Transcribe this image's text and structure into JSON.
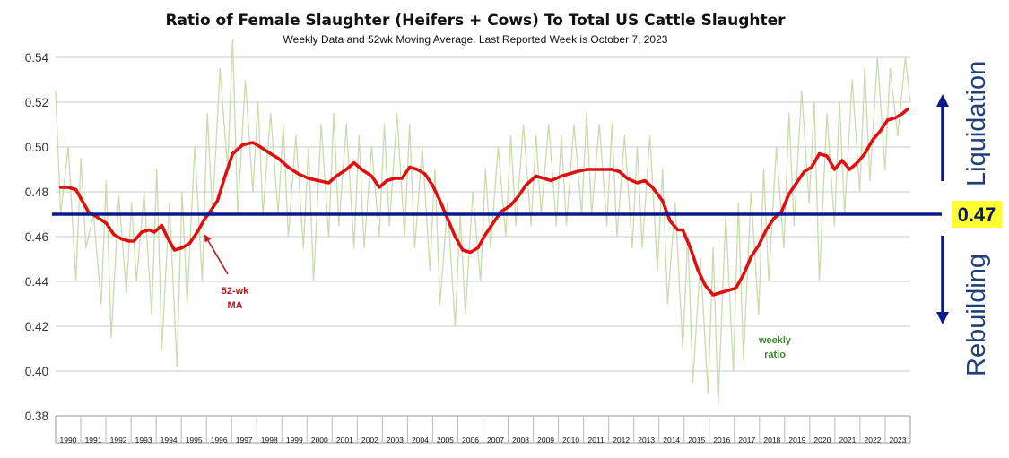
{
  "chart_data": {
    "type": "line",
    "title": "Ratio of Female Slaughter (Heifers + Cows) To Total US Cattle Slaughter",
    "subtitle": "Weekly Data and 52wk Moving Average.  Last Reported Week is October 7, 2023",
    "y_ticks": [
      "0.54",
      "0.52",
      "0.50",
      "0.48",
      "0.46",
      "0.44",
      "0.42",
      "0.40",
      "0.38"
    ],
    "ylim": [
      0.38,
      0.54
    ],
    "x_ticks": [
      "1990",
      "1991",
      "1992",
      "1993",
      "1994",
      "1995",
      "1996",
      "1997",
      "1998",
      "1999",
      "2000",
      "2001",
      "2002",
      "2003",
      "2004",
      "2005",
      "2006",
      "2007",
      "2008",
      "2009",
      "2010",
      "2011",
      "2012",
      "2013",
      "2014",
      "2015",
      "2016",
      "2017",
      "2018",
      "2019",
      "2020",
      "2021",
      "2022",
      "2023"
    ],
    "xlim": [
      1990.0,
      2023.8
    ],
    "grid": "horizontal",
    "threshold": {
      "value": 0.47,
      "label": "0.47",
      "color": "#0a1a8c"
    },
    "series": [
      {
        "color": "#c8dcac",
        "x": [
          1990.0,
          1990.2,
          1990.5,
          1990.8,
          1991.0,
          1991.2,
          1991.5,
          1991.8,
          1992.0,
          1992.2,
          1992.5,
          1992.8,
          1993.0,
          1993.2,
          1993.5,
          1993.8,
          1994.0,
          1994.2,
          1994.5,
          1994.8,
          1995.0,
          1995.2,
          1995.5,
          1995.8,
          1996.0,
          1996.2,
          1996.5,
          1996.8,
          1997.0,
          1997.2,
          1997.5,
          1997.8,
          1998.0,
          1998.2,
          1998.5,
          1998.8,
          1999.0,
          1999.2,
          1999.5,
          1999.8,
          2000.0,
          2000.2,
          2000.5,
          2000.8,
          2001.0,
          2001.2,
          2001.5,
          2001.8,
          2002.0,
          2002.2,
          2002.5,
          2002.8,
          2003.0,
          2003.2,
          2003.5,
          2003.8,
          2004.0,
          2004.2,
          2004.5,
          2004.8,
          2005.0,
          2005.2,
          2005.5,
          2005.8,
          2006.0,
          2006.2,
          2006.5,
          2006.8,
          2007.0,
          2007.2,
          2007.5,
          2007.8,
          2008.0,
          2008.2,
          2008.5,
          2008.8,
          2009.0,
          2009.2,
          2009.5,
          2009.8,
          2010.0,
          2010.2,
          2010.5,
          2010.8,
          2011.0,
          2011.2,
          2011.5,
          2011.8,
          2012.0,
          2012.2,
          2012.5,
          2012.8,
          2013.0,
          2013.2,
          2013.5,
          2013.8,
          2014.0,
          2014.2,
          2014.5,
          2014.8,
          2015.0,
          2015.2,
          2015.5,
          2015.8,
          2016.0,
          2016.2,
          2016.5,
          2016.8,
          2017.0,
          2017.2,
          2017.5,
          2017.8,
          2018.0,
          2018.2,
          2018.5,
          2018.8,
          2019.0,
          2019.2,
          2019.5,
          2019.8,
          2020.0,
          2020.2,
          2020.5,
          2020.8,
          2021.0,
          2021.2,
          2021.5,
          2021.8,
          2022.0,
          2022.2,
          2022.5,
          2022.8,
          2023.0,
          2023.3,
          2023.6,
          2023.8
        ],
        "values": [
          0.525,
          0.47,
          0.5,
          0.44,
          0.495,
          0.455,
          0.47,
          0.43,
          0.485,
          0.415,
          0.478,
          0.435,
          0.475,
          0.44,
          0.48,
          0.425,
          0.49,
          0.41,
          0.475,
          0.402,
          0.48,
          0.43,
          0.5,
          0.44,
          0.515,
          0.47,
          0.535,
          0.49,
          0.548,
          0.47,
          0.53,
          0.48,
          0.52,
          0.47,
          0.515,
          0.47,
          0.51,
          0.46,
          0.505,
          0.455,
          0.5,
          0.44,
          0.51,
          0.46,
          0.515,
          0.465,
          0.51,
          0.455,
          0.505,
          0.455,
          0.5,
          0.46,
          0.51,
          0.465,
          0.515,
          0.46,
          0.51,
          0.455,
          0.5,
          0.445,
          0.49,
          0.43,
          0.475,
          0.42,
          0.47,
          0.425,
          0.48,
          0.44,
          0.49,
          0.455,
          0.5,
          0.46,
          0.505,
          0.465,
          0.51,
          0.465,
          0.505,
          0.47,
          0.51,
          0.465,
          0.505,
          0.465,
          0.51,
          0.47,
          0.515,
          0.47,
          0.51,
          0.465,
          0.51,
          0.46,
          0.505,
          0.455,
          0.5,
          0.455,
          0.505,
          0.445,
          0.49,
          0.43,
          0.475,
          0.41,
          0.46,
          0.395,
          0.45,
          0.39,
          0.455,
          0.385,
          0.47,
          0.4,
          0.475,
          0.405,
          0.48,
          0.425,
          0.49,
          0.44,
          0.5,
          0.455,
          0.515,
          0.465,
          0.525,
          0.475,
          0.52,
          0.44,
          0.515,
          0.465,
          0.52,
          0.47,
          0.53,
          0.48,
          0.535,
          0.485,
          0.54,
          0.49,
          0.535,
          0.505,
          0.54,
          0.52
        ]
      },
      {
        "color": "#dd1111",
        "x": [
          1990.2,
          1990.5,
          1990.8,
          1991.0,
          1991.3,
          1991.6,
          1992.0,
          1992.3,
          1992.6,
          1992.9,
          1993.1,
          1993.4,
          1993.7,
          1993.9,
          1994.2,
          1994.4,
          1994.7,
          1995.0,
          1995.3,
          1995.6,
          1995.9,
          1996.1,
          1996.4,
          1996.7,
          1997.0,
          1997.4,
          1997.8,
          1998.1,
          1998.5,
          1998.8,
          1999.2,
          1999.6,
          2000.0,
          2000.4,
          2000.8,
          2001.1,
          2001.5,
          2001.8,
          2002.1,
          2002.5,
          2002.8,
          2003.1,
          2003.4,
          2003.7,
          2004.0,
          2004.3,
          2004.6,
          2004.9,
          2005.2,
          2005.5,
          2005.8,
          2006.1,
          2006.4,
          2006.7,
          2007.0,
          2007.3,
          2007.6,
          2008.0,
          2008.3,
          2008.6,
          2009.0,
          2009.3,
          2009.6,
          2010.0,
          2010.3,
          2010.6,
          2011.0,
          2011.3,
          2011.6,
          2012.0,
          2012.3,
          2012.6,
          2013.0,
          2013.3,
          2013.6,
          2014.0,
          2014.3,
          2014.6,
          2014.8,
          2015.1,
          2015.4,
          2015.7,
          2016.0,
          2016.3,
          2016.6,
          2016.9,
          2017.2,
          2017.5,
          2017.8,
          2018.1,
          2018.4,
          2018.7,
          2019.0,
          2019.3,
          2019.6,
          2019.9,
          2020.2,
          2020.5,
          2020.8,
          2021.1,
          2021.4,
          2021.7,
          2022.0,
          2022.3,
          2022.6,
          2022.9,
          2023.2,
          2023.5,
          2023.7
        ],
        "values": [
          0.482,
          0.482,
          0.481,
          0.477,
          0.471,
          0.469,
          0.466,
          0.461,
          0.459,
          0.458,
          0.458,
          0.462,
          0.463,
          0.462,
          0.465,
          0.46,
          0.454,
          0.455,
          0.457,
          0.462,
          0.468,
          0.471,
          0.476,
          0.487,
          0.497,
          0.501,
          0.502,
          0.5,
          0.497,
          0.495,
          0.491,
          0.488,
          0.486,
          0.485,
          0.484,
          0.487,
          0.49,
          0.493,
          0.49,
          0.487,
          0.482,
          0.485,
          0.486,
          0.486,
          0.491,
          0.49,
          0.488,
          0.483,
          0.476,
          0.468,
          0.46,
          0.454,
          0.453,
          0.455,
          0.461,
          0.466,
          0.471,
          0.474,
          0.478,
          0.483,
          0.487,
          0.486,
          0.485,
          0.487,
          0.488,
          0.489,
          0.49,
          0.49,
          0.49,
          0.49,
          0.489,
          0.486,
          0.484,
          0.485,
          0.482,
          0.476,
          0.467,
          0.463,
          0.463,
          0.455,
          0.445,
          0.438,
          0.434,
          0.435,
          0.436,
          0.437,
          0.443,
          0.451,
          0.456,
          0.463,
          0.468,
          0.471,
          0.479,
          0.484,
          0.489,
          0.491,
          0.497,
          0.496,
          0.49,
          0.494,
          0.49,
          0.493,
          0.497,
          0.503,
          0.507,
          0.512,
          0.513,
          0.515,
          0.517
        ]
      }
    ],
    "annotations": {
      "ma_label": [
        "52-wk",
        "MA"
      ],
      "weekly_label": [
        "weekly",
        "ratio"
      ],
      "liquidation": "Liquidation",
      "rebuilding": "Rebuilding"
    }
  }
}
